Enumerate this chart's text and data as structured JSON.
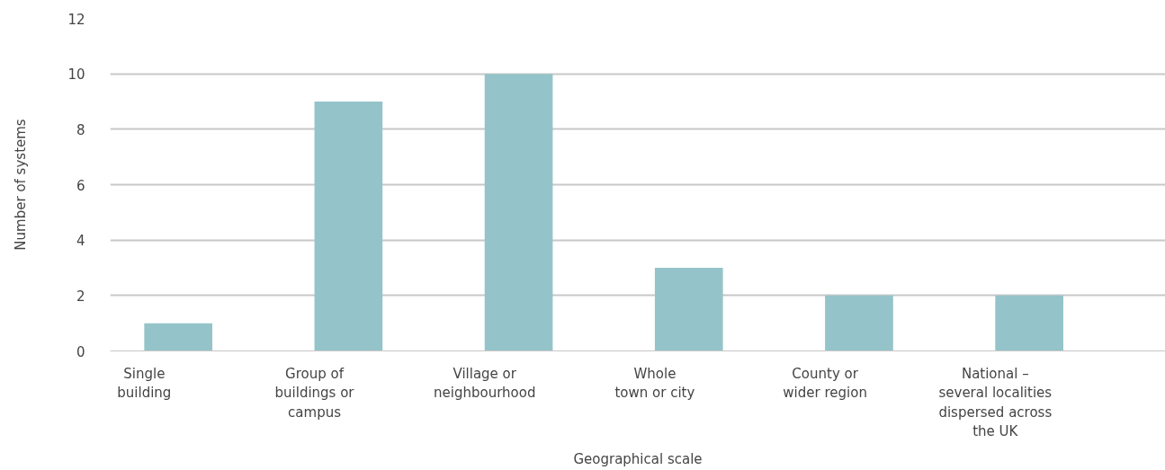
{
  "chart_data": {
    "type": "bar",
    "xlabel": "Geographical scale",
    "ylabel": "Number of systems",
    "categories": [
      "Single\nbuilding",
      "Group of\nbuildings or\ncampus",
      "Village or\nneighbourhood",
      "Whole\ntown or city",
      "County or\nwider region",
      "National –\nseveral localities\ndispersed across\nthe UK"
    ],
    "values": [
      1,
      9,
      10,
      3,
      2,
      2
    ],
    "color": "#94c4c9",
    "ylim": [
      0,
      12
    ],
    "yticks": [
      0,
      2,
      4,
      6,
      8,
      10,
      12
    ],
    "grid": "y"
  }
}
